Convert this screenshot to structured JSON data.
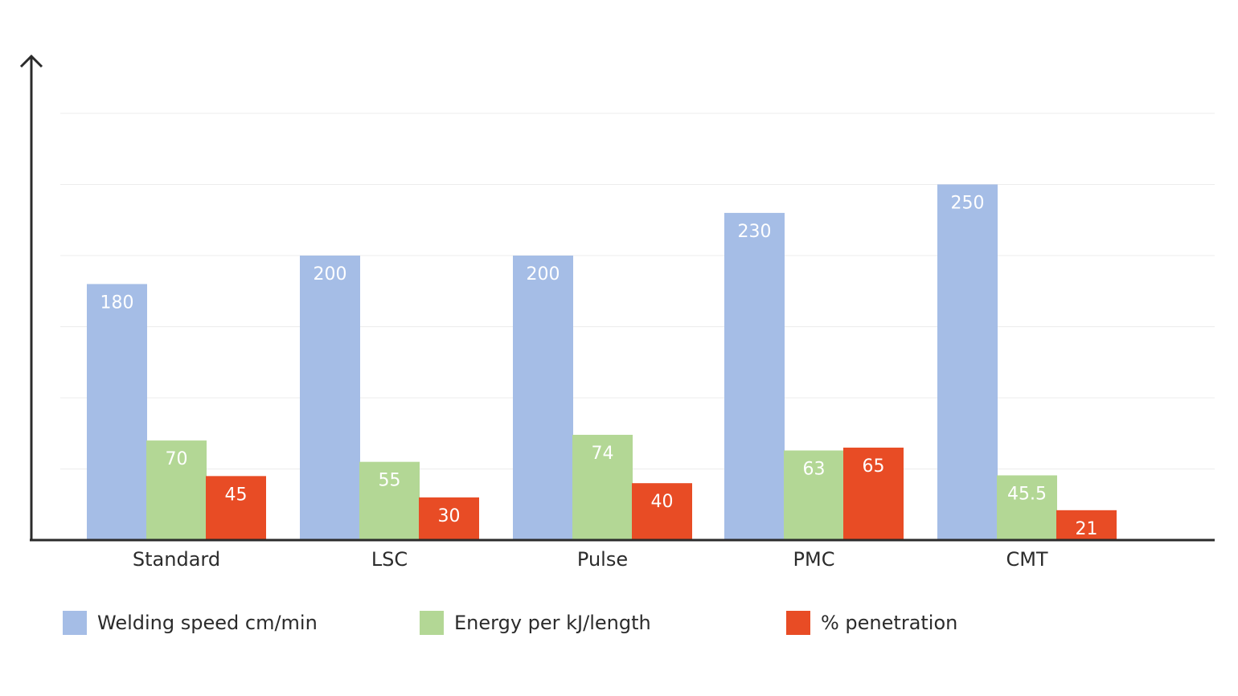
{
  "chart_data": {
    "type": "bar",
    "title": "",
    "xlabel": "",
    "ylabel": "",
    "ylim": [
      0,
      300
    ],
    "grid": true,
    "legend_position": "bottom",
    "categories": [
      "Standard",
      "LSC",
      "Pulse",
      "PMC",
      "CMT"
    ],
    "series": [
      {
        "name": "Welding speed cm/min",
        "color": "#a5bde6",
        "values": [
          180,
          200,
          200,
          230,
          250
        ],
        "labels": [
          "180",
          "200",
          "200",
          "230",
          "250"
        ]
      },
      {
        "name": "Energy per kJ/length",
        "color": "#b3d795",
        "values": [
          70,
          55,
          74,
          63,
          45.5
        ],
        "labels": [
          "70",
          "55",
          "74",
          "63",
          "45.5"
        ]
      },
      {
        "name": "% penetration",
        "color": "#e84c25",
        "values": [
          45,
          30,
          40,
          65,
          21
        ],
        "labels": [
          "45",
          "30",
          "40",
          "65",
          "21"
        ]
      }
    ]
  }
}
